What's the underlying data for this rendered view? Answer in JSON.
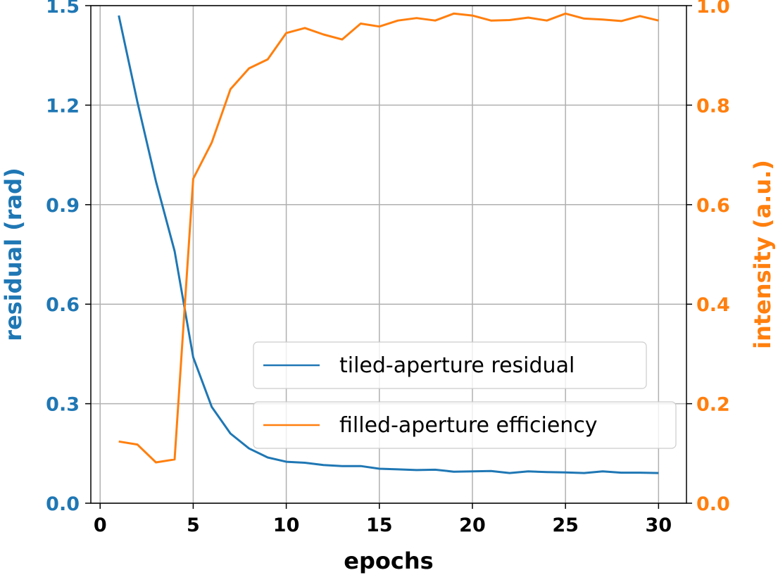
{
  "chart_data": {
    "type": "line",
    "xlabel": "epochs",
    "ylabel_left": "residual (rad)",
    "ylabel_right": "intensity (a.u.)",
    "xlim": [
      -0.5,
      31.5
    ],
    "ylim_left": [
      0.0,
      1.5
    ],
    "ylim_right": [
      0.0,
      1.0
    ],
    "xticks": [
      "0",
      "5",
      "10",
      "15",
      "20",
      "25",
      "30"
    ],
    "yticks_left": [
      "0.0",
      "0.3",
      "0.6",
      "0.9",
      "1.2",
      "1.5"
    ],
    "yticks_right": [
      "0.0",
      "0.2",
      "0.4",
      "0.6",
      "0.8",
      "1.0"
    ],
    "grid": true,
    "legend_position": "lower-right",
    "x": [
      1,
      2,
      3,
      4,
      5,
      6,
      7,
      8,
      9,
      10,
      11,
      12,
      13,
      14,
      15,
      16,
      17,
      18,
      19,
      20,
      21,
      22,
      23,
      24,
      25,
      26,
      27,
      28,
      29,
      30
    ],
    "series": [
      {
        "name": "tiled-aperture residual",
        "axis": "left",
        "color": "#1f77b4",
        "values": [
          1.47,
          1.21,
          0.97,
          0.76,
          0.44,
          0.29,
          0.21,
          0.165,
          0.138,
          0.125,
          0.122,
          0.115,
          0.112,
          0.112,
          0.104,
          0.102,
          0.1,
          0.101,
          0.095,
          0.096,
          0.097,
          0.091,
          0.096,
          0.094,
          0.093,
          0.091,
          0.096,
          0.092,
          0.092,
          0.091
        ]
      },
      {
        "name": "filled-aperture efficiency",
        "axis": "right",
        "color": "#ff7f0e",
        "values": [
          0.124,
          0.118,
          0.082,
          0.088,
          0.652,
          0.725,
          0.832,
          0.874,
          0.892,
          0.945,
          0.955,
          0.942,
          0.932,
          0.964,
          0.958,
          0.97,
          0.975,
          0.97,
          0.984,
          0.98,
          0.97,
          0.971,
          0.976,
          0.97,
          0.984,
          0.974,
          0.972,
          0.969,
          0.979,
          0.97
        ]
      }
    ]
  }
}
